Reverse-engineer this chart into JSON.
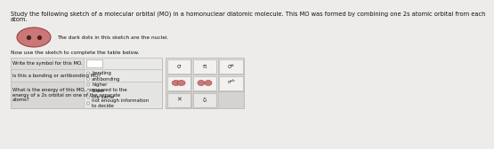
{
  "bg_color": "#edecea",
  "title_text1": "Study the following sketch of a molecular orbital (MO) in a homonuclear diatomic molecule. This MO was formed by combining one 2s atomic orbital from each",
  "title_text2": "atom.",
  "nucleus_label": "The dark dots in this sketch are the nuclei.",
  "table_instruction": "Now use the sketch to complete the table below.",
  "row1_label": "Write the symbol for this MO.",
  "row2_label": "Is this a bonding or antibonding MO?",
  "row3_label": "What is the energy of this MO, compared to the\nenergy of a 2s orbital on one of the separate\natoms?",
  "radio_col2_opts": [
    "bonding",
    "antibonding",
    "higher",
    "lower",
    "the same",
    "not enough information\nto decide"
  ],
  "border_color": "#bbbbbb",
  "orbital_color": "#cc7777",
  "orbital_edge": "#994444",
  "nucleus_color": "#4a2222",
  "title_fontsize": 4.8,
  "label_fontsize": 4.2,
  "radio_fontsize": 3.9,
  "pal_fontsize": 5.0
}
